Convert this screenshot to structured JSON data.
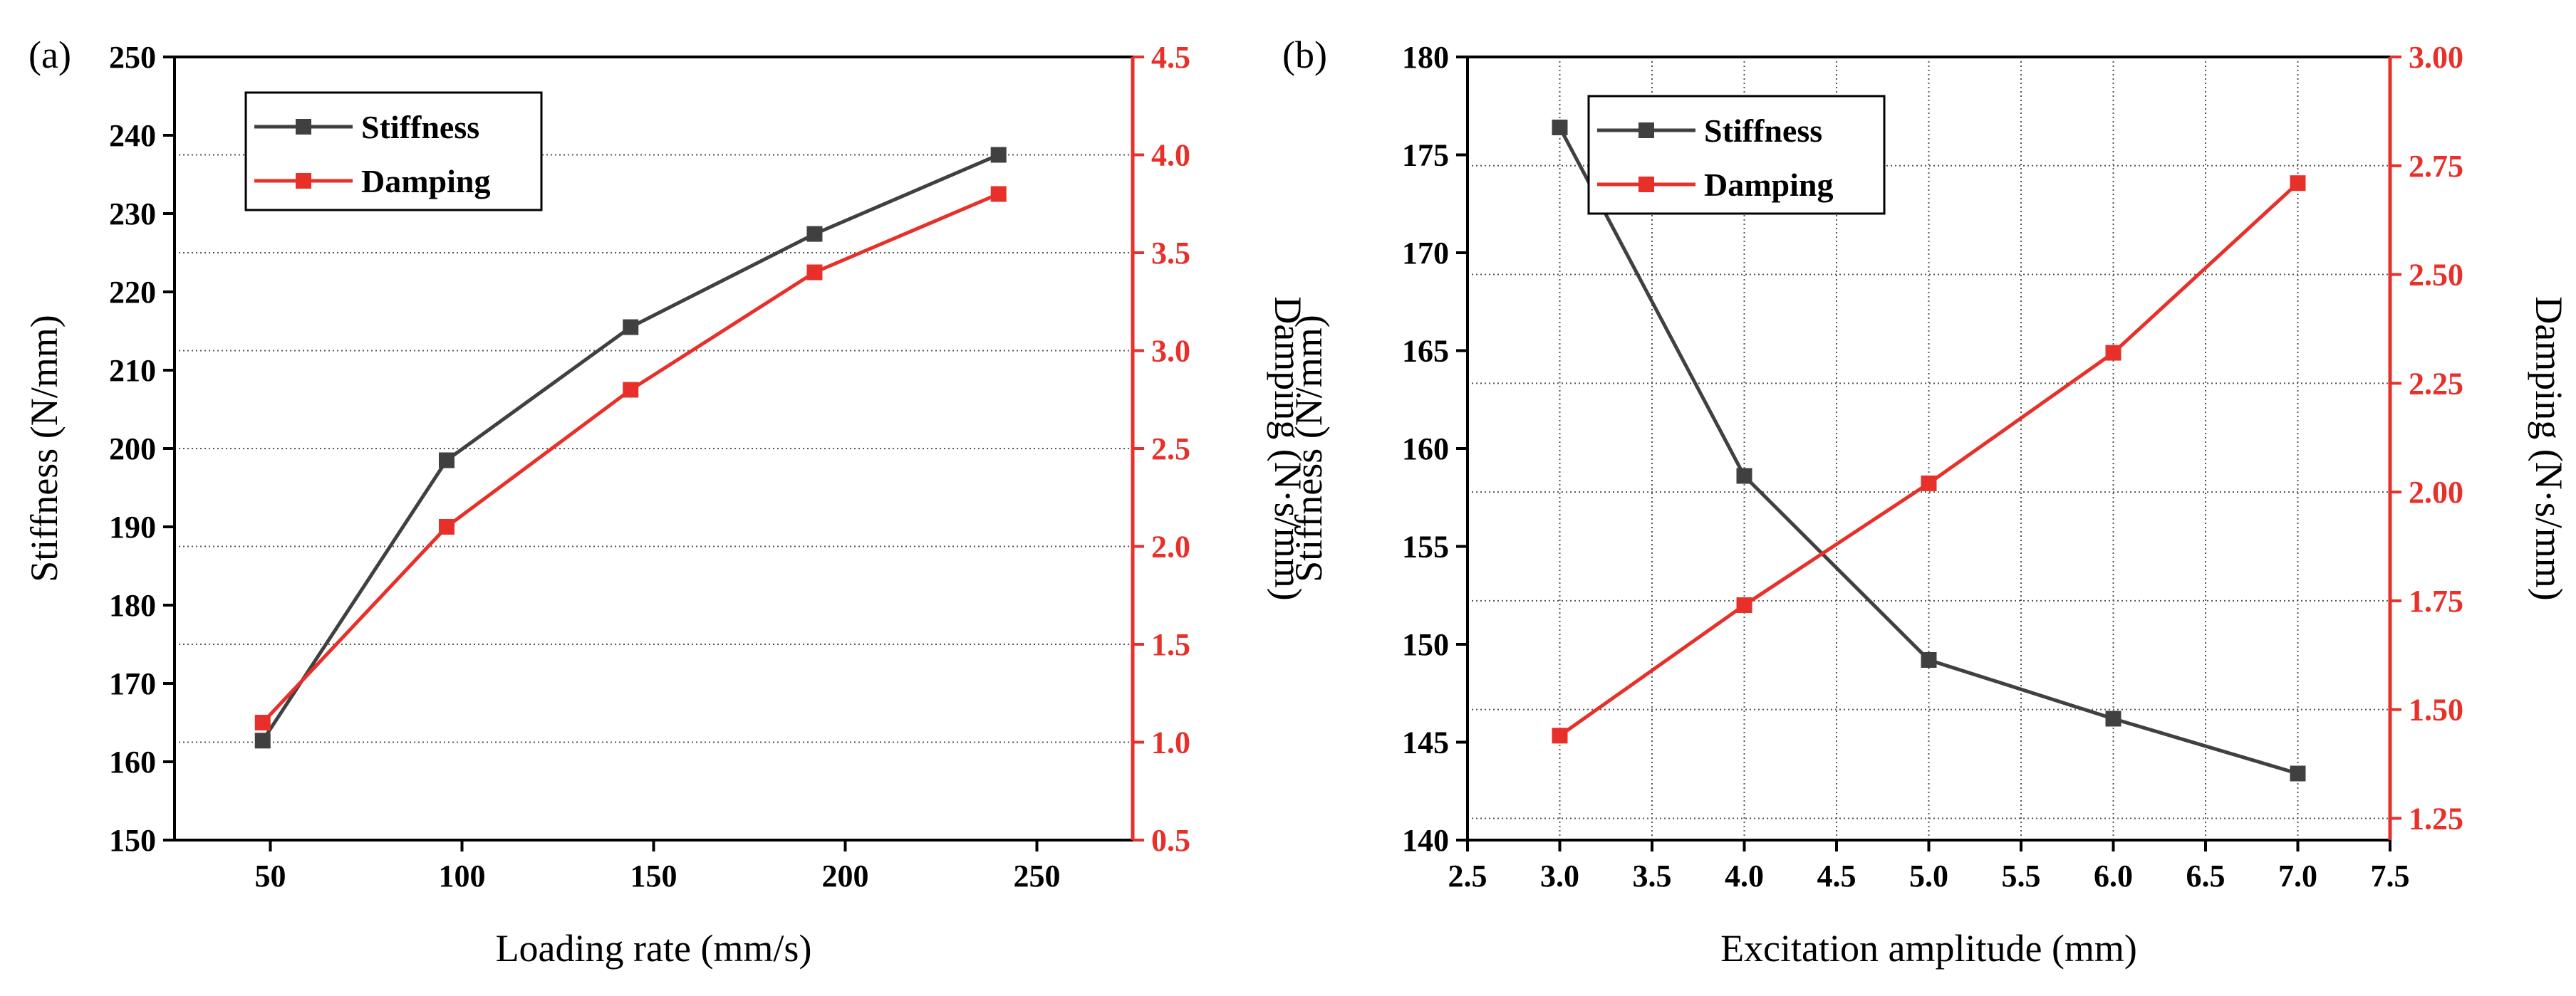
{
  "colors": {
    "stiffness": "#404040",
    "damping": "#e8302a",
    "axis": "#000000"
  },
  "chart_data": [
    {
      "type": "line",
      "panel_label": "(a)",
      "xlabel": "Loading rate (mm/s)",
      "ylabel_left": "Stiffness (N/mm)",
      "ylabel_right": "Damping (N·s/mm)",
      "xlim": [
        25,
        275
      ],
      "xticks": [
        50,
        100,
        150,
        200,
        250
      ],
      "xtick_labels": [
        "50",
        "100",
        "150",
        "200",
        "250"
      ],
      "ylim_left": [
        150,
        250
      ],
      "yticks_left": [
        150,
        160,
        170,
        180,
        190,
        200,
        210,
        220,
        230,
        240,
        250
      ],
      "ytick_labels_left": [
        "150",
        "160",
        "170",
        "180",
        "190",
        "200",
        "210",
        "220",
        "230",
        "240",
        "250"
      ],
      "ylim_right": [
        0.5,
        4.5
      ],
      "yticks_right": [
        0.5,
        1.0,
        1.5,
        2.0,
        2.5,
        3.0,
        3.5,
        4.0,
        4.5
      ],
      "ytick_labels_right": [
        "0.5",
        "1.0",
        "1.5",
        "2.0",
        "2.5",
        "3.0",
        "3.5",
        "4.0",
        "4.5"
      ],
      "series": [
        {
          "name": "Stiffness",
          "axis": "left",
          "x": [
            48,
            96,
            144,
            192,
            240
          ],
          "values": [
            162.7,
            198.5,
            215.5,
            227.4,
            237.5
          ]
        },
        {
          "name": "Damping",
          "axis": "right",
          "x": [
            48,
            96,
            144,
            192,
            240
          ],
          "values": [
            1.1,
            2.1,
            2.8,
            3.4,
            3.8
          ]
        }
      ],
      "legend_position": "top-left",
      "grid": "dotted horizontal at right-axis ticks"
    },
    {
      "type": "line",
      "panel_label": "(b)",
      "xlabel": "Excitation amplitude (mm)",
      "ylabel_left": "Stiffness (N/mm)",
      "ylabel_right": "Damping (N·s/mm)",
      "xlim": [
        2.5,
        7.5
      ],
      "xticks": [
        2.5,
        3.0,
        3.5,
        4.0,
        4.5,
        5.0,
        5.5,
        6.0,
        6.5,
        7.0,
        7.5
      ],
      "xtick_labels": [
        "2.5",
        "3.0",
        "3.5",
        "4.0",
        "4.5",
        "5.0",
        "5.5",
        "6.0",
        "6.5",
        "7.0",
        "7.5"
      ],
      "ylim_left": [
        140,
        180
      ],
      "yticks_left": [
        140,
        145,
        150,
        155,
        160,
        165,
        170,
        175,
        180
      ],
      "ytick_labels_left": [
        "140",
        "145",
        "150",
        "155",
        "160",
        "165",
        "170",
        "175",
        "180"
      ],
      "ylim_right": [
        1.2,
        3.0
      ],
      "yticks_right": [
        1.25,
        1.5,
        1.75,
        2.0,
        2.25,
        2.5,
        2.75,
        3.0
      ],
      "ytick_labels_right": [
        "1.25",
        "1.50",
        "1.75",
        "2.00",
        "2.25",
        "2.50",
        "2.75",
        "3.00"
      ],
      "series": [
        {
          "name": "Stiffness",
          "axis": "left",
          "x": [
            3.0,
            4.0,
            5.0,
            6.0,
            7.0
          ],
          "values": [
            176.4,
            158.6,
            149.2,
            146.2,
            143.4
          ]
        },
        {
          "name": "Damping",
          "axis": "right",
          "x": [
            3.0,
            4.0,
            5.0,
            6.0,
            7.0
          ],
          "values": [
            1.44,
            1.74,
            2.02,
            2.32,
            2.71
          ]
        }
      ],
      "legend_position": "top-left",
      "grid": "dotted vertical at x ticks, dotted horizontal at right-axis ticks"
    }
  ]
}
